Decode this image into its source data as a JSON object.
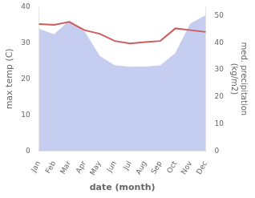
{
  "chart_data": {
    "type": "line",
    "categories": [
      "Jan",
      "Feb",
      "Mar",
      "Apr",
      "May",
      "Jun",
      "Jul",
      "Aug",
      "Sep",
      "Oct",
      "Nov",
      "Dec"
    ],
    "xlabel": "date (month)",
    "ylabel": "max temp (C)",
    "y2label": "med. precipitation\n(kg/m2)",
    "ylim": [
      0,
      40
    ],
    "yticks": [
      0,
      10,
      20,
      30,
      40
    ],
    "y2lim": [
      0,
      53.3
    ],
    "y2ticks": [
      0,
      10,
      20,
      30,
      40,
      50
    ],
    "grid": false,
    "series": [
      {
        "type": "line",
        "color": "#cd5c5c",
        "values": [
          35.2,
          35.0,
          35.8,
          33.5,
          32.5,
          30.5,
          29.8,
          30.2,
          30.5,
          34.0,
          33.5,
          33.0
        ]
      },
      {
        "type": "area",
        "axis": "y2",
        "color": "#c5cdf0",
        "values": [
          45.0,
          43.0,
          48.0,
          44.0,
          35.0,
          31.5,
          31.0,
          31.0,
          31.5,
          36.0,
          47.0,
          50.0
        ]
      }
    ]
  }
}
